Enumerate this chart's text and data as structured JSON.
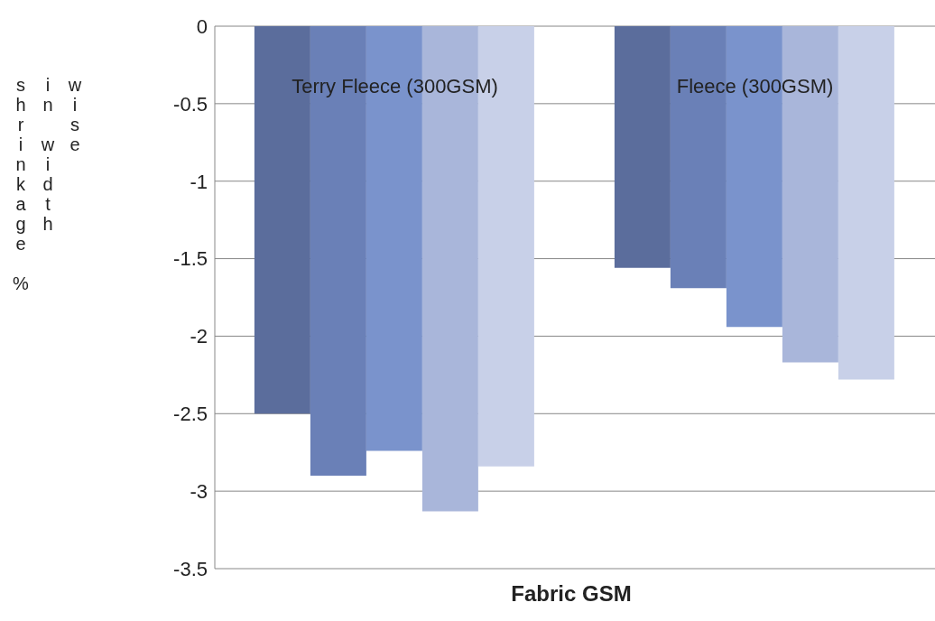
{
  "chart_data": {
    "type": "bar",
    "categories": [
      "Terry Fleece (300GSM)",
      "Fleece (300GSM)"
    ],
    "series": [
      {
        "color": "#5b6d9c",
        "values": [
          -2.5,
          -1.56
        ]
      },
      {
        "color": "#6a80b7",
        "values": [
          -2.9,
          -1.69
        ]
      },
      {
        "color": "#7a93cc",
        "values": [
          -2.74,
          -1.94
        ]
      },
      {
        "color": "#a9b6da",
        "values": [
          -3.13,
          -2.17
        ]
      },
      {
        "color": "#c8d0e8",
        "values": [
          -2.84,
          -2.28
        ]
      }
    ],
    "ylim": [
      -3.5,
      0
    ],
    "yticks": [
      0,
      -0.5,
      -1,
      -1.5,
      -2,
      -2.5,
      -3,
      -3.5
    ],
    "grid": "y",
    "xlabel": "Fabric GSM",
    "ylabel": "shrinkage % in width wise"
  }
}
